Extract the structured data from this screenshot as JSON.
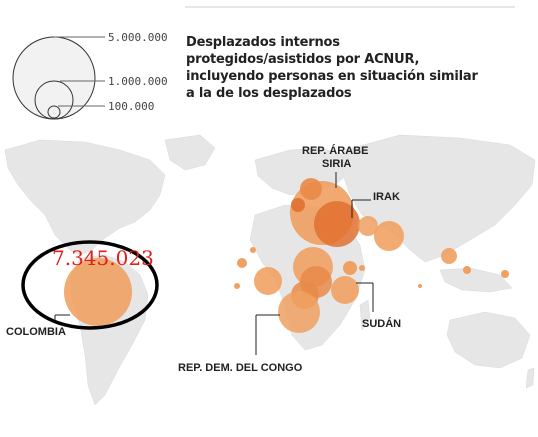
{
  "legend": {
    "values": [
      "5.000.000",
      "1.000.000",
      "100.000"
    ],
    "title_lines": [
      "Desplazados internos",
      "protegidos/asistidos por ACNUR,",
      "incluyendo personas en situación similar",
      "a la de los desplazados"
    ]
  },
  "labels": {
    "siria_line1": "REP. ÁRABE",
    "siria_line2": "SIRIA",
    "irak": "IRAK",
    "sudan": "SUDÁN",
    "congo": "REP. DEM. DEL CONGO",
    "colombia": "COLOMBIA"
  },
  "highlight": {
    "value": "7.345.023"
  },
  "colors": {
    "bubble": "#f0a060",
    "bubble_dark": "#e07030",
    "land": "#e6e6e6",
    "ellipse": "#000000",
    "highlight_text": "#e0201b"
  }
}
